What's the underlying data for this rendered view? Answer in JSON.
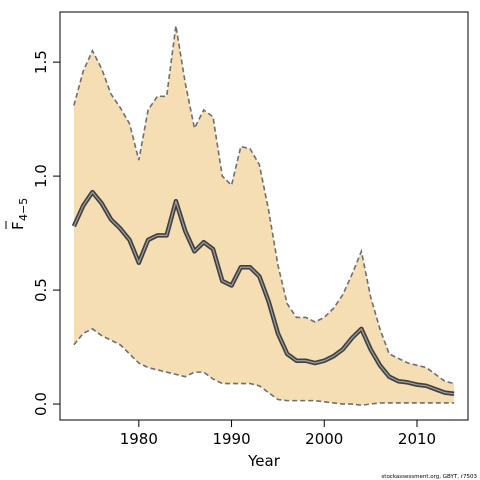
{
  "chart_data": {
    "type": "line",
    "title": "",
    "xlabel": "Year",
    "ylabel_main": "F",
    "ylabel_sub": "4−5",
    "xlim": [
      1971.5,
      2015.5
    ],
    "ylim": [
      -0.07,
      1.72
    ],
    "x_ticks": [
      1980,
      1990,
      2000,
      2010
    ],
    "x_tick_labels": [
      "1980",
      "1990",
      "2000",
      "2010"
    ],
    "y_ticks": [
      0.0,
      0.5,
      1.0,
      1.5
    ],
    "y_tick_labels": [
      "0.0",
      "0.5",
      "1.0",
      "1.5"
    ],
    "grid": false,
    "legend": "none",
    "colors": {
      "band": "#f5deb3",
      "bound_line": "#6e6e6e",
      "estimate_line": "#404040"
    },
    "x": [
      1973,
      1974,
      1975,
      1976,
      1977,
      1978,
      1979,
      1980,
      1981,
      1982,
      1983,
      1984,
      1985,
      1986,
      1987,
      1988,
      1989,
      1990,
      1991,
      1992,
      1993,
      1994,
      1995,
      1996,
      1997,
      1998,
      1999,
      2000,
      2001,
      2002,
      2003,
      2004,
      2005,
      2006,
      2007,
      2008,
      2009,
      2010,
      2011,
      2012,
      2013,
      2014
    ],
    "series": [
      {
        "role": "estimate",
        "values": [
          0.78,
          0.87,
          0.93,
          0.88,
          0.81,
          0.77,
          0.72,
          0.62,
          0.72,
          0.74,
          0.74,
          0.89,
          0.76,
          0.67,
          0.71,
          0.68,
          0.54,
          0.52,
          0.6,
          0.6,
          0.56,
          0.45,
          0.31,
          0.22,
          0.19,
          0.19,
          0.18,
          0.19,
          0.21,
          0.24,
          0.29,
          0.33,
          0.24,
          0.17,
          0.12,
          0.1,
          0.095,
          0.085,
          0.08,
          0.065,
          0.05,
          0.045
        ]
      },
      {
        "role": "upper",
        "values": [
          1.31,
          1.46,
          1.55,
          1.47,
          1.36,
          1.3,
          1.23,
          1.07,
          1.29,
          1.35,
          1.35,
          1.66,
          1.41,
          1.21,
          1.29,
          1.26,
          1.0,
          0.96,
          1.13,
          1.12,
          1.05,
          0.85,
          0.61,
          0.44,
          0.38,
          0.38,
          0.36,
          0.38,
          0.42,
          0.48,
          0.57,
          0.67,
          0.47,
          0.33,
          0.22,
          0.2,
          0.18,
          0.17,
          0.16,
          0.13,
          0.1,
          0.09
        ]
      },
      {
        "role": "lower",
        "values": [
          0.26,
          0.31,
          0.33,
          0.3,
          0.28,
          0.26,
          0.22,
          0.18,
          0.16,
          0.15,
          0.14,
          0.13,
          0.12,
          0.14,
          0.14,
          0.11,
          0.09,
          0.09,
          0.09,
          0.09,
          0.08,
          0.05,
          0.02,
          0.015,
          0.015,
          0.015,
          0.015,
          0.01,
          0.005,
          0.0,
          0.0,
          -0.005,
          0.0,
          0.005,
          0.005,
          0.005,
          0.005,
          0.005,
          0.005,
          0.005,
          0.005,
          0.005
        ]
      }
    ],
    "credit": "stockassessment.org, GBYT, r7503"
  }
}
